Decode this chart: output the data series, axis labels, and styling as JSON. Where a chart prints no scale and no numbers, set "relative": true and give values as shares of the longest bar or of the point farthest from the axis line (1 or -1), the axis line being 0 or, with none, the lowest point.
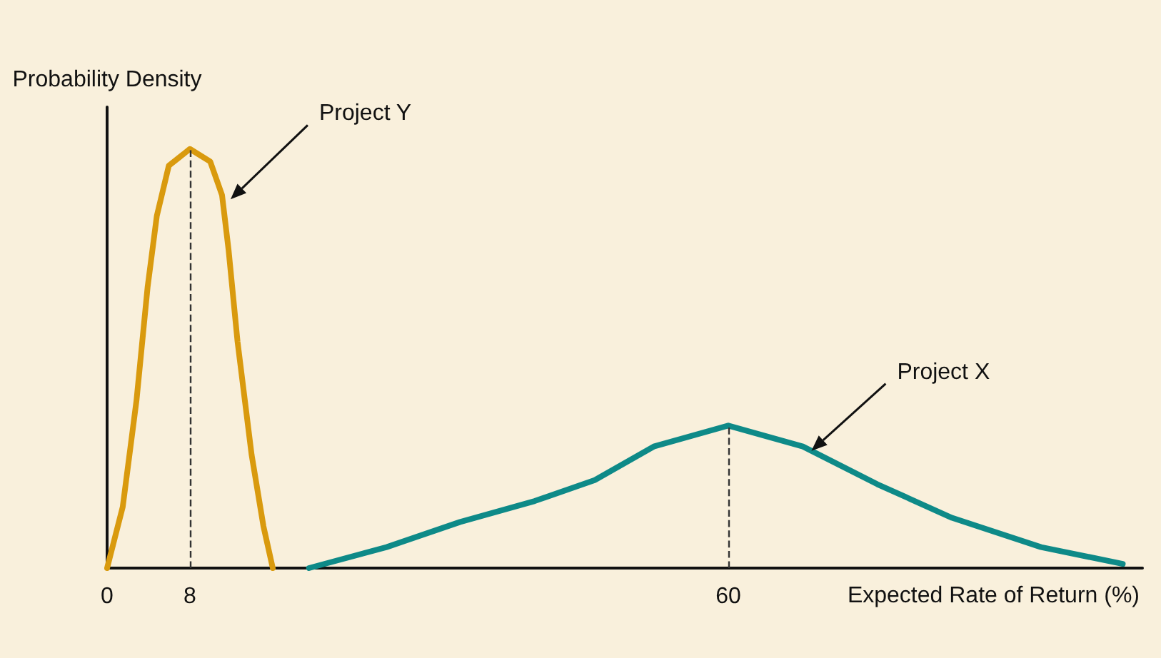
{
  "chart_data": {
    "type": "line",
    "relative": true,
    "xlabel": "Expected Rate of Return (%)",
    "ylabel": "Probability Density",
    "xlim": [
      0,
      100
    ],
    "xticks": [
      0,
      8,
      60
    ],
    "series": [
      {
        "name": "Project Y",
        "color": "#d99a0e",
        "x": [
          0,
          1.51,
          2.84,
          3.91,
          4.8,
          5.96,
          8,
          9.96,
          11.1,
          11.73,
          12.6,
          13.96,
          15.1,
          16
        ],
        "values": [
          0,
          0.146,
          0.4,
          0.67,
          0.84,
          0.96,
          1,
          0.97,
          0.89,
          0.76,
          0.54,
          0.27,
          0.1,
          0
        ]
      },
      {
        "name": "Project X",
        "color": "#0e8a88",
        "x": [
          19.5,
          27,
          34.1,
          41.3,
          47.1,
          52.8,
          60,
          67.2,
          74.4,
          81.6,
          90.2,
          98.1
        ],
        "values": [
          0,
          0.05,
          0.11,
          0.16,
          0.21,
          0.29,
          0.34,
          0.29,
          0.2,
          0.12,
          0.05,
          0.01
        ]
      }
    ],
    "ref_lines": [
      {
        "axis": "x",
        "value": 8,
        "line_style": "dashed",
        "color": "#333333"
      },
      {
        "axis": "x",
        "value": 60,
        "line_style": "dashed",
        "color": "#333333"
      }
    ],
    "grid": false,
    "legend": false,
    "marker": "none",
    "line_style": "solid"
  }
}
